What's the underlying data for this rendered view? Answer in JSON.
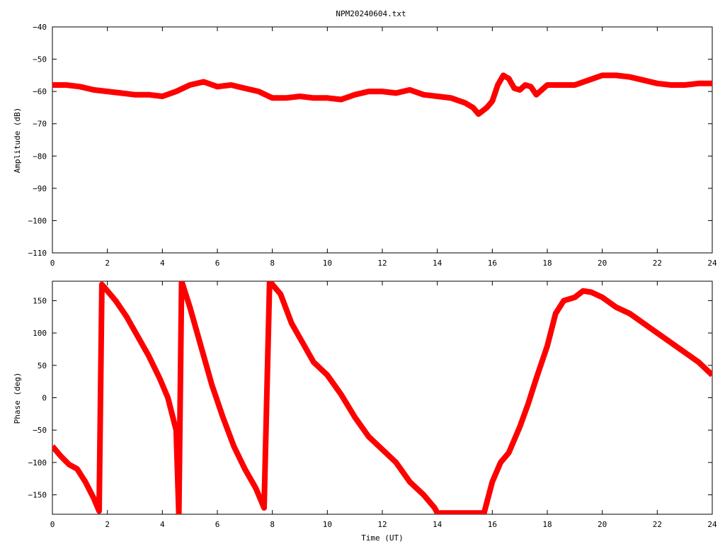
{
  "chart_data": [
    {
      "type": "line",
      "title": "NPM20240604.txt",
      "xlabel": "",
      "ylabel": "Amplitude (dB)",
      "xlim": [
        0,
        24
      ],
      "ylim": [
        -110,
        -40
      ],
      "x_ticks": [
        "0",
        "2",
        "4",
        "6",
        "8",
        "10",
        "12",
        "14",
        "16",
        "18",
        "20",
        "22",
        "24"
      ],
      "y_ticks": [
        "-40",
        "-50",
        "-60",
        "-70",
        "-80",
        "-90",
        "-100",
        "-110"
      ],
      "grid": false,
      "line_color": "#ff0000",
      "series": [
        {
          "x": [
            0,
            0.5,
            1,
            1.5,
            2,
            2.5,
            3,
            3.5,
            4,
            4.5,
            5,
            5.5,
            6,
            6.5,
            7,
            7.5,
            8,
            8.5,
            9,
            9.5,
            10,
            10.5,
            11,
            11.5,
            12,
            12.5,
            13,
            13.5,
            14,
            14.5,
            15,
            15.3,
            15.5,
            15.8,
            16,
            16.2,
            16.4,
            16.6,
            16.8,
            17,
            17.2,
            17.4,
            17.6,
            17.8,
            18,
            18.5,
            19,
            19.5,
            20,
            20.5,
            21,
            21.5,
            22,
            22.5,
            23,
            23.5,
            24
          ],
          "y": [
            -58,
            -58,
            -58.5,
            -59.5,
            -60,
            -60.5,
            -61,
            -61,
            -61.5,
            -60,
            -58,
            -57,
            -58.5,
            -58,
            -59,
            -60,
            -62,
            -62,
            -61.5,
            -62,
            -62,
            -62.5,
            -61,
            -60,
            -60,
            -60.5,
            -59.5,
            -61,
            -61.5,
            -62,
            -63.5,
            -65,
            -67,
            -65,
            -63,
            -58,
            -55,
            -56,
            -59,
            -59.5,
            -58,
            -58.5,
            -61,
            -59.5,
            -58,
            -58,
            -58,
            -56.5,
            -55,
            -55,
            -55.5,
            -56.5,
            -57.5,
            -58,
            -58,
            -57.5,
            -57.5
          ]
        }
      ]
    },
    {
      "type": "line",
      "title": "",
      "xlabel": "Time (UT)",
      "ylabel": "Phase (deg)",
      "xlim": [
        0,
        24
      ],
      "ylim": [
        -180,
        180
      ],
      "x_ticks": [
        "0",
        "2",
        "4",
        "6",
        "8",
        "10",
        "12",
        "14",
        "16",
        "18",
        "20",
        "22",
        "24"
      ],
      "y_ticks": [
        "150",
        "100",
        "50",
        "0",
        "-50",
        "-100",
        "-150"
      ],
      "grid": false,
      "line_color": "#ff0000",
      "series": [
        {
          "x": [
            0,
            0.3,
            0.6,
            0.9,
            1.2,
            1.5,
            1.7,
            1.8,
            1.9,
            2.3,
            2.7,
            3.1,
            3.5,
            3.9,
            4.2,
            4.5,
            4.6,
            4.7,
            5,
            5.4,
            5.8,
            6.2,
            6.6,
            7,
            7.4,
            7.7,
            7.9,
            8.3,
            8.7,
            9.1,
            9.5,
            10,
            10.5,
            11,
            11.5,
            12,
            12.5,
            13,
            13.5,
            13.9,
            14,
            15.7,
            16,
            16.3,
            16.6,
            17,
            17.3,
            17.6,
            18,
            18.3,
            18.6,
            19,
            19.3,
            19.6,
            20,
            20.5,
            21,
            21.5,
            22,
            22.5,
            23,
            23.5,
            24
          ],
          "y": [
            -75,
            -90,
            -103,
            -110,
            -130,
            -155,
            -175,
            175,
            170,
            150,
            125,
            95,
            65,
            30,
            0,
            -50,
            -180,
            180,
            140,
            80,
            20,
            -30,
            -75,
            -110,
            -140,
            -170,
            180,
            160,
            115,
            85,
            55,
            35,
            5,
            -30,
            -60,
            -80,
            -100,
            -130,
            -150,
            -170,
            -178,
            -178,
            -130,
            -100,
            -85,
            -45,
            -10,
            30,
            80,
            130,
            150,
            155,
            165,
            163,
            155,
            140,
            130,
            115,
            100,
            85,
            70,
            55,
            35
          ]
        }
      ]
    }
  ]
}
